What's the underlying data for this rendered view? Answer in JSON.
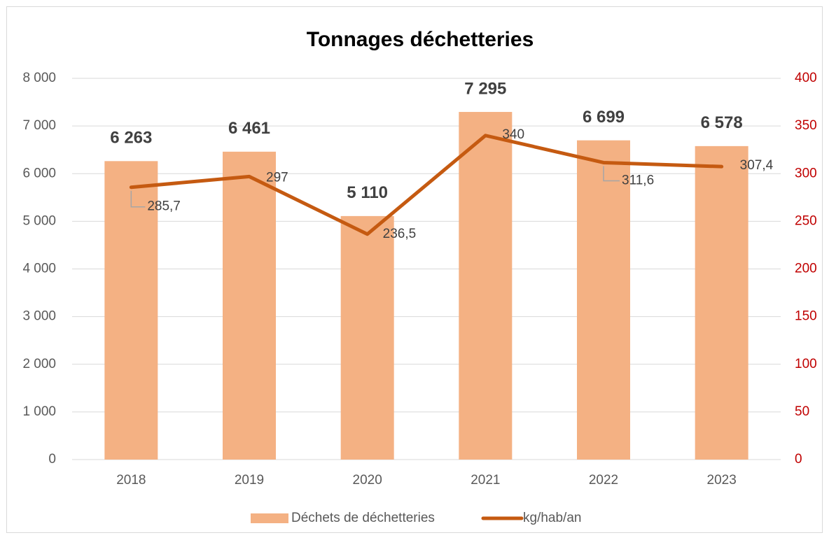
{
  "chart_data": {
    "type": "bar_line",
    "title": "Tonnages déchetteries",
    "categories": [
      "2018",
      "2019",
      "2020",
      "2021",
      "2022",
      "2023"
    ],
    "series": [
      {
        "name": "Déchets de déchetteries",
        "type": "bar",
        "color": "#f4b183",
        "values": [
          6263,
          6461,
          5110,
          7295,
          6699,
          6578
        ],
        "value_labels": [
          "6 263",
          "6 461",
          "5 110",
          "7 295",
          "6 699",
          "6 578"
        ]
      },
      {
        "name": "kg/hab/an",
        "type": "line",
        "color": "#c55a11",
        "axis": "y2",
        "values": [
          285.7,
          297,
          236.5,
          340,
          311.6,
          307.4
        ],
        "value_labels": [
          "285,7",
          "297",
          "236,5",
          "340",
          "311,6",
          "307,4"
        ]
      }
    ],
    "ylim": [
      0,
      8000
    ],
    "yticks": [
      0,
      {
        "value": 1000,
        "label": "1 000"
      },
      {
        "value": 2000,
        "label": "2 000"
      },
      {
        "value": 3000,
        "label": "3 000"
      },
      {
        "value": 4000,
        "label": "4 000"
      },
      {
        "value": 5000,
        "label": "5 000"
      },
      {
        "value": 6000,
        "label": "6 000"
      },
      {
        "value": 7000,
        "label": "7 000"
      },
      {
        "value": 8000,
        "label": "8 000"
      }
    ],
    "y2lim": [
      0,
      400
    ],
    "y2ticks": [
      0,
      50,
      100,
      150,
      200,
      250,
      300,
      350,
      400
    ],
    "y2_color": "#c00000",
    "grid": true,
    "legend": "bottom"
  }
}
